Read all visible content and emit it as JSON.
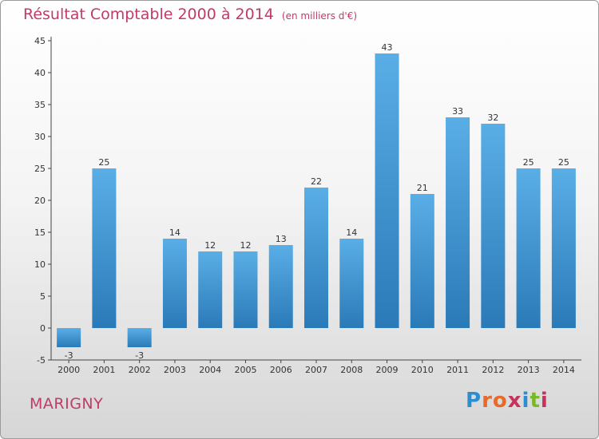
{
  "header": {
    "title": "Résultat Comptable 2000 à 2014",
    "unit": "(en milliers d'€)"
  },
  "footer": {
    "commune": "MARIGNY"
  },
  "logo": {
    "letters": [
      "P",
      "r",
      "o",
      "x",
      "i",
      "t",
      "i"
    ]
  },
  "colors": {
    "title": "#c03a6a",
    "bar_top": "#5aaee6",
    "bar_bottom": "#2a7ab8",
    "logo_letters": [
      "#2a8fd0",
      "#e8692a",
      "#e8692a",
      "#c8325a",
      "#2a8fd0",
      "#7ab82a",
      "#c8325a"
    ]
  },
  "chart_data": {
    "type": "bar",
    "title": "Résultat Comptable 2000 à 2014",
    "xlabel": "",
    "ylabel": "",
    "categories": [
      "2000",
      "2001",
      "2002",
      "2003",
      "2004",
      "2005",
      "2006",
      "2007",
      "2008",
      "2009",
      "2010",
      "2011",
      "2012",
      "2013",
      "2014"
    ],
    "values": [
      -3,
      25,
      -3,
      14,
      12,
      12,
      13,
      22,
      14,
      43,
      21,
      33,
      32,
      25,
      25
    ],
    "ylim": [
      -5,
      45
    ],
    "yticks": [
      -5,
      0,
      5,
      10,
      15,
      20,
      25,
      30,
      35,
      40,
      45
    ],
    "grid": false
  }
}
